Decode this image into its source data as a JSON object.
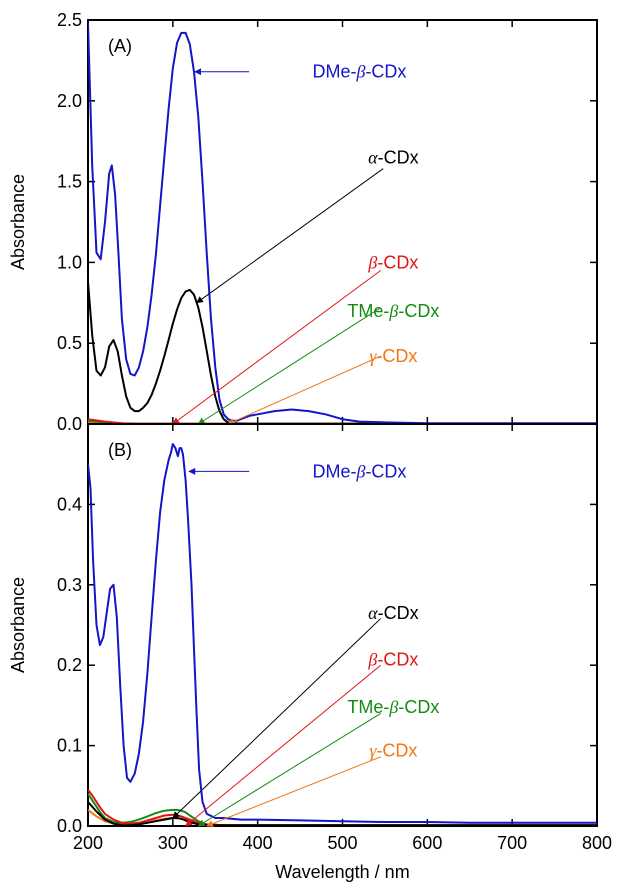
{
  "chart_data": [
    {
      "type": "line",
      "panel_label": "(A)",
      "xlabel": "",
      "ylabel": "Absorbance",
      "xlim": [
        200,
        800
      ],
      "ylim": [
        0,
        2.5
      ],
      "xticks": [
        200,
        300,
        400,
        500,
        600,
        700,
        800
      ],
      "yticks": [
        0,
        0.5,
        1.0,
        1.5,
        2.0,
        2.5
      ],
      "ytick_labels": [
        "0.0",
        "0.5",
        "1.0",
        "1.5",
        "2.0",
        "2.5"
      ],
      "series": [
        {
          "name": "DMe-β-CDx",
          "color": "#1414c8",
          "x": [
            200,
            205,
            210,
            215,
            220,
            225,
            228,
            232,
            236,
            240,
            245,
            250,
            255,
            260,
            265,
            270,
            275,
            280,
            285,
            290,
            295,
            300,
            305,
            310,
            315,
            320,
            325,
            330,
            335,
            340,
            345,
            350,
            355,
            360,
            365,
            370,
            375,
            380,
            390,
            400,
            420,
            440,
            460,
            480,
            500,
            520,
            550,
            600,
            650,
            700,
            750,
            800
          ],
          "y": [
            2.48,
            1.6,
            1.06,
            1.02,
            1.25,
            1.55,
            1.6,
            1.42,
            1.05,
            0.65,
            0.4,
            0.31,
            0.3,
            0.35,
            0.45,
            0.6,
            0.8,
            1.05,
            1.35,
            1.65,
            1.95,
            2.2,
            2.36,
            2.42,
            2.42,
            2.35,
            2.18,
            1.9,
            1.5,
            1.05,
            0.65,
            0.35,
            0.15,
            0.06,
            0.03,
            0.02,
            0.02,
            0.03,
            0.05,
            0.06,
            0.08,
            0.09,
            0.08,
            0.06,
            0.03,
            0.015,
            0.01,
            0.005,
            0.005,
            0.005,
            0.005,
            0.005
          ]
        },
        {
          "name": "α-CDx",
          "color": "#000000",
          "x": [
            200,
            205,
            210,
            215,
            220,
            225,
            230,
            235,
            240,
            245,
            250,
            255,
            260,
            265,
            270,
            275,
            280,
            285,
            290,
            295,
            300,
            305,
            310,
            315,
            320,
            325,
            330,
            335,
            340,
            345,
            350,
            355,
            360,
            365,
            370,
            380,
            390,
            400,
            420,
            440,
            460,
            480,
            500,
            550,
            600,
            700,
            800
          ],
          "y": [
            0.88,
            0.55,
            0.33,
            0.3,
            0.35,
            0.48,
            0.52,
            0.45,
            0.3,
            0.17,
            0.1,
            0.08,
            0.08,
            0.1,
            0.13,
            0.18,
            0.25,
            0.33,
            0.42,
            0.52,
            0.62,
            0.71,
            0.78,
            0.82,
            0.83,
            0.8,
            0.72,
            0.6,
            0.45,
            0.3,
            0.17,
            0.08,
            0.03,
            0.01,
            0.005,
            0.003,
            0.002,
            0.002,
            0.002,
            0.002,
            0.002,
            0.002,
            0.002,
            0.002,
            0.002,
            0.002,
            0.002
          ]
        },
        {
          "name": "β-CDx",
          "color": "#e01414",
          "x": [
            200,
            220,
            240,
            260,
            300,
            400,
            500,
            600,
            800
          ],
          "y": [
            0.03,
            0.015,
            0.005,
            0.002,
            0.002,
            0.002,
            0.002,
            0.002,
            0.002
          ]
        },
        {
          "name": "TMe-β-CDx",
          "color": "#148c14",
          "x": [
            200,
            220,
            240,
            260,
            300,
            400,
            500,
            600,
            800
          ],
          "y": [
            0.02,
            0.01,
            0.004,
            0.002,
            0.002,
            0.002,
            0.002,
            0.002,
            0.002
          ]
        },
        {
          "name": "γ-CDx",
          "color": "#f07814",
          "x": [
            200,
            220,
            240,
            260,
            300,
            400,
            500,
            600,
            800
          ],
          "y": [
            0.01,
            0.005,
            0.002,
            0.001,
            0.001,
            0.001,
            0.001,
            0.001,
            0.001
          ]
        }
      ],
      "annotations": [
        {
          "text": "DMe-β-CDx",
          "greek": "β",
          "prefix": "DMe-",
          "suffix": "-CDx",
          "color": "#1414c8",
          "text_x": 520,
          "text_y": 2.18,
          "arrow_from": [
            390,
            2.18
          ],
          "arrow_to": [
            326,
            2.18
          ]
        },
        {
          "text": "α-CDx",
          "greek": "α",
          "prefix": "",
          "suffix": "-CDx",
          "color": "#000000",
          "text_x": 560,
          "text_y": 1.65,
          "arrow_from": [
            548,
            1.58
          ],
          "arrow_to": [
            328,
            0.75
          ]
        },
        {
          "text": "β-CDx",
          "greek": "β",
          "prefix": "",
          "suffix": "-CDx",
          "color": "#e01414",
          "text_x": 560,
          "text_y": 1.0,
          "arrow_from": [
            545,
            0.95
          ],
          "arrow_to": [
            300,
            0.0
          ]
        },
        {
          "text": "TMe-β-CDx",
          "greek": "β",
          "prefix": "TMe-",
          "suffix": "-CDx",
          "color": "#148c14",
          "text_x": 560,
          "text_y": 0.7,
          "arrow_from": [
            545,
            0.72
          ],
          "arrow_to": [
            330,
            0.0
          ]
        },
        {
          "text": "γ-CDx",
          "greek": "γ",
          "prefix": "",
          "suffix": "-CDx",
          "color": "#f07814",
          "text_x": 560,
          "text_y": 0.42,
          "arrow_from": [
            545,
            0.42
          ],
          "arrow_to": [
            365,
            0.0
          ]
        }
      ]
    },
    {
      "type": "line",
      "panel_label": "(B)",
      "xlabel": "Wavelength / nm",
      "ylabel": "Absorbance",
      "xlim": [
        200,
        800
      ],
      "ylim": [
        0,
        0.5
      ],
      "xticks": [
        200,
        300,
        400,
        500,
        600,
        700,
        800
      ],
      "xtick_labels": [
        "200",
        "300",
        "400",
        "500",
        "600",
        "700",
        "800"
      ],
      "yticks": [
        0,
        0.1,
        0.2,
        0.3,
        0.4
      ],
      "ytick_labels": [
        "0.0",
        "0.1",
        "0.2",
        "0.3",
        "0.4"
      ],
      "series": [
        {
          "name": "DMe-β-CDx",
          "color": "#1414c8",
          "x": [
            200,
            203,
            206,
            210,
            214,
            218,
            222,
            226,
            230,
            234,
            238,
            242,
            246,
            250,
            255,
            260,
            265,
            270,
            275,
            280,
            285,
            290,
            295,
            298,
            300,
            303,
            306,
            308,
            310,
            312,
            315,
            318,
            320,
            322,
            325,
            328,
            331,
            335,
            340,
            350,
            360,
            380,
            400,
            450,
            500,
            550,
            600,
            650,
            700,
            750,
            800
          ],
          "y": [
            0.45,
            0.42,
            0.33,
            0.25,
            0.225,
            0.235,
            0.265,
            0.295,
            0.3,
            0.26,
            0.175,
            0.1,
            0.06,
            0.055,
            0.065,
            0.09,
            0.13,
            0.19,
            0.26,
            0.33,
            0.39,
            0.43,
            0.455,
            0.465,
            0.475,
            0.47,
            0.46,
            0.47,
            0.47,
            0.462,
            0.43,
            0.38,
            0.34,
            0.3,
            0.22,
            0.14,
            0.07,
            0.03,
            0.015,
            0.01,
            0.01,
            0.008,
            0.008,
            0.007,
            0.006,
            0.005,
            0.005,
            0.004,
            0.004,
            0.004,
            0.004
          ]
        },
        {
          "name": "α-CDx",
          "color": "#000000",
          "x": [
            200,
            210,
            220,
            230,
            240,
            250,
            260,
            270,
            280,
            290,
            300,
            305,
            310,
            315,
            320,
            330,
            340,
            360,
            400,
            500,
            600,
            800
          ],
          "y": [
            0.03,
            0.018,
            0.008,
            0.003,
            0.001,
            0.001,
            0.002,
            0.004,
            0.006,
            0.008,
            0.01,
            0.01,
            0.009,
            0.007,
            0.005,
            0.002,
            0.001,
            0.001,
            0.001,
            0.001,
            0.001,
            0.001
          ]
        },
        {
          "name": "β-CDx",
          "color": "#e01414",
          "x": [
            200,
            205,
            210,
            215,
            220,
            230,
            240,
            250,
            260,
            270,
            280,
            290,
            300,
            310,
            320,
            330,
            340,
            360,
            400,
            500,
            800
          ],
          "y": [
            0.045,
            0.038,
            0.03,
            0.022,
            0.015,
            0.008,
            0.004,
            0.003,
            0.004,
            0.007,
            0.01,
            0.013,
            0.014,
            0.012,
            0.008,
            0.004,
            0.002,
            0.001,
            0.001,
            0.001,
            0.001
          ]
        },
        {
          "name": "TMe-β-CDx",
          "color": "#148c14",
          "x": [
            200,
            205,
            210,
            215,
            220,
            230,
            240,
            250,
            260,
            270,
            280,
            290,
            300,
            305,
            310,
            315,
            320,
            330,
            340,
            360,
            400,
            500,
            800
          ],
          "y": [
            0.04,
            0.032,
            0.024,
            0.016,
            0.01,
            0.005,
            0.004,
            0.005,
            0.008,
            0.012,
            0.016,
            0.019,
            0.02,
            0.02,
            0.019,
            0.017,
            0.013,
            0.006,
            0.002,
            0.001,
            0.001,
            0.001,
            0.001
          ]
        },
        {
          "name": "γ-CDx",
          "color": "#f07814",
          "x": [
            200,
            210,
            220,
            230,
            240,
            250,
            260,
            270,
            280,
            290,
            300,
            310,
            320,
            330,
            340,
            360,
            400,
            500,
            800
          ],
          "y": [
            0.02,
            0.012,
            0.006,
            0.003,
            0.002,
            0.002,
            0.003,
            0.005,
            0.007,
            0.009,
            0.01,
            0.009,
            0.007,
            0.004,
            0.002,
            0.001,
            0.001,
            0.001,
            0.001
          ]
        }
      ],
      "annotations": [
        {
          "text": "DMe-β-CDx",
          "greek": "β",
          "prefix": "DMe-",
          "suffix": "-CDx",
          "color": "#1414c8",
          "text_x": 520,
          "text_y": 0.441,
          "arrow_from": [
            390,
            0.441
          ],
          "arrow_to": [
            319,
            0.441
          ]
        },
        {
          "text": "α-CDx",
          "greek": "α",
          "prefix": "",
          "suffix": "-CDx",
          "color": "#000000",
          "text_x": 560,
          "text_y": 0.265,
          "arrow_from": [
            545,
            0.258
          ],
          "arrow_to": [
            300,
            0.01
          ]
        },
        {
          "text": "β-CDx",
          "greek": "β",
          "prefix": "",
          "suffix": "-CDx",
          "color": "#e01414",
          "text_x": 560,
          "text_y": 0.207,
          "arrow_from": [
            545,
            0.2
          ],
          "arrow_to": [
            315,
            0.0
          ]
        },
        {
          "text": "TMe-β-CDx",
          "greek": "β",
          "prefix": "TMe-",
          "suffix": "-CDx",
          "color": "#148c14",
          "text_x": 560,
          "text_y": 0.148,
          "arrow_from": [
            545,
            0.14
          ],
          "arrow_to": [
            330,
            0.0
          ]
        },
        {
          "text": "γ-CDx",
          "greek": "γ",
          "prefix": "",
          "suffix": "-CDx",
          "color": "#f07814",
          "text_x": 560,
          "text_y": 0.094,
          "arrow_from": [
            545,
            0.086
          ],
          "arrow_to": [
            340,
            0.0
          ]
        }
      ]
    }
  ]
}
